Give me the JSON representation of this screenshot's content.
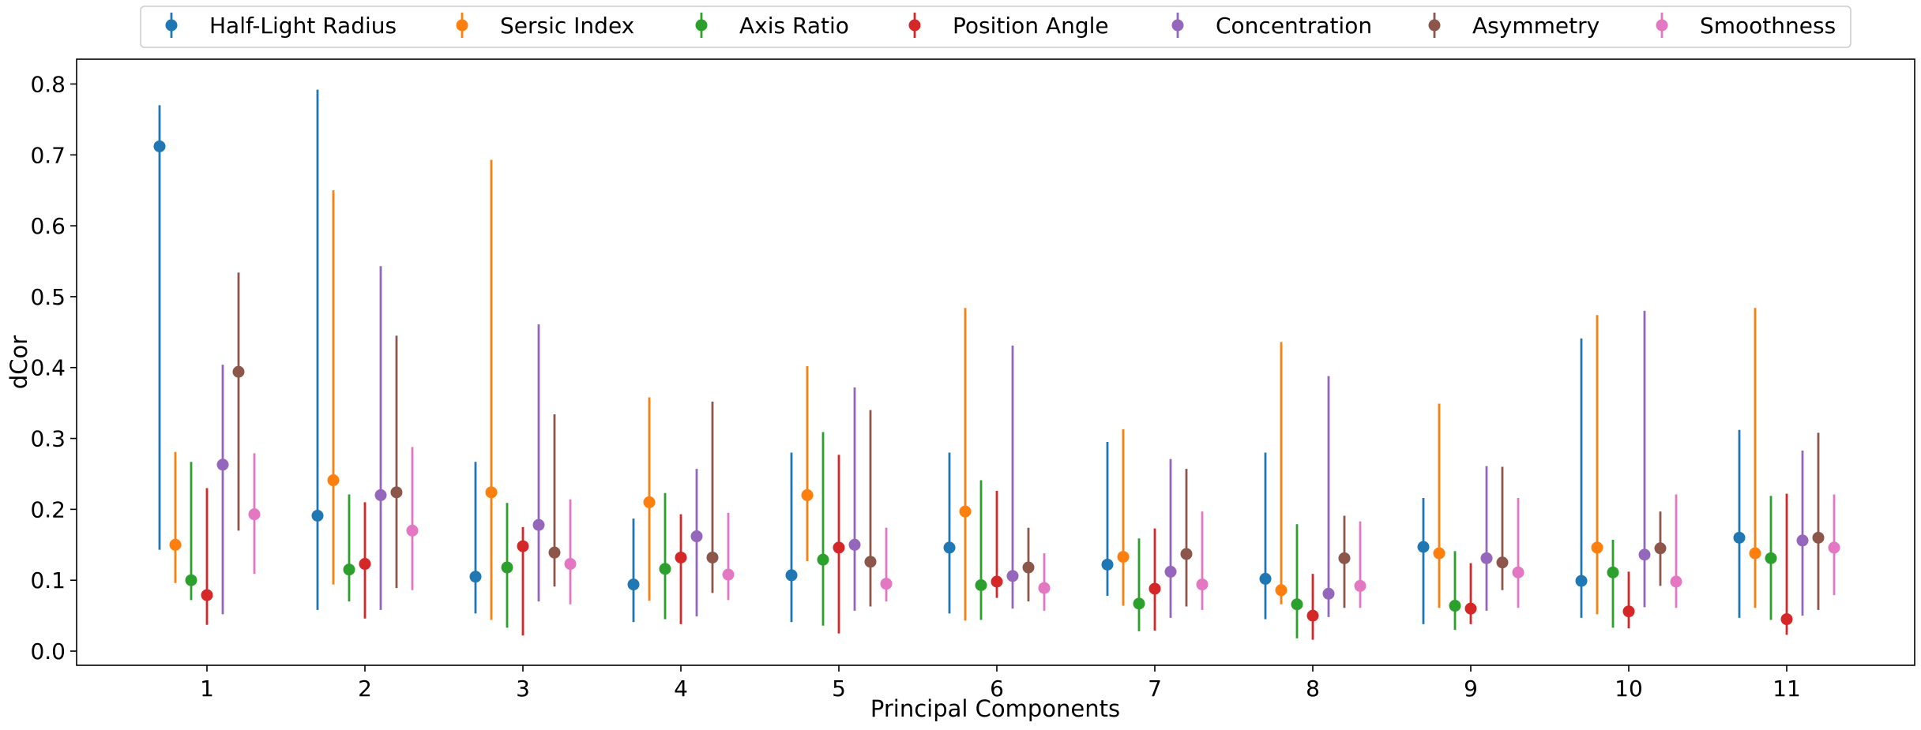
{
  "chart_data": {
    "type": "scatter",
    "variant": "point-with-errorbars",
    "xlabel": "Principal Components",
    "ylabel": "dCor",
    "categories": [
      "1",
      "2",
      "3",
      "4",
      "5",
      "6",
      "7",
      "8",
      "9",
      "10",
      "11"
    ],
    "ylim": [
      -0.02,
      0.835
    ],
    "yticks": [
      "0.0",
      "0.1",
      "0.2",
      "0.3",
      "0.4",
      "0.5",
      "0.6",
      "0.7",
      "0.8"
    ],
    "grid": false,
    "legend_position": "top-center",
    "series": [
      {
        "name": "Half-Light Radius",
        "color": "#1f77b4",
        "values": [
          0.712,
          0.191,
          0.105,
          0.094,
          0.107,
          0.146,
          0.122,
          0.102,
          0.147,
          0.099,
          0.16
        ],
        "lower": [
          0.143,
          0.058,
          0.053,
          0.041,
          0.041,
          0.053,
          0.078,
          0.045,
          0.038,
          0.047,
          0.047
        ],
        "upper": [
          0.77,
          0.792,
          0.267,
          0.187,
          0.28,
          0.28,
          0.295,
          0.28,
          0.216,
          0.441,
          0.312
        ]
      },
      {
        "name": "Sersic Index",
        "color": "#ff7f0e",
        "values": [
          0.15,
          0.241,
          0.224,
          0.21,
          0.22,
          0.197,
          0.133,
          0.086,
          0.138,
          0.146,
          0.138
        ],
        "lower": [
          0.096,
          0.094,
          0.044,
          0.071,
          0.127,
          0.043,
          0.064,
          0.066,
          0.061,
          0.052,
          0.061
        ],
        "upper": [
          0.281,
          0.65,
          0.693,
          0.358,
          0.402,
          0.484,
          0.313,
          0.436,
          0.349,
          0.474,
          0.484
        ]
      },
      {
        "name": "Axis Ratio",
        "color": "#2ca02c",
        "values": [
          0.1,
          0.115,
          0.118,
          0.116,
          0.129,
          0.093,
          0.067,
          0.066,
          0.064,
          0.111,
          0.131
        ],
        "lower": [
          0.072,
          0.07,
          0.033,
          0.045,
          0.036,
          0.044,
          0.028,
          0.018,
          0.03,
          0.033,
          0.044
        ],
        "upper": [
          0.267,
          0.221,
          0.209,
          0.223,
          0.309,
          0.241,
          0.159,
          0.179,
          0.141,
          0.157,
          0.219
        ]
      },
      {
        "name": "Position Angle",
        "color": "#d62728",
        "values": [
          0.079,
          0.123,
          0.148,
          0.132,
          0.146,
          0.098,
          0.088,
          0.05,
          0.06,
          0.056,
          0.045
        ],
        "lower": [
          0.037,
          0.046,
          0.022,
          0.038,
          0.025,
          0.075,
          0.029,
          0.016,
          0.038,
          0.032,
          0.023
        ],
        "upper": [
          0.23,
          0.21,
          0.175,
          0.193,
          0.277,
          0.226,
          0.173,
          0.109,
          0.124,
          0.112,
          0.222
        ]
      },
      {
        "name": "Concentration",
        "color": "#9467bd",
        "values": [
          0.263,
          0.22,
          0.178,
          0.162,
          0.15,
          0.106,
          0.112,
          0.081,
          0.131,
          0.136,
          0.156
        ],
        "lower": [
          0.052,
          0.058,
          0.07,
          0.049,
          0.057,
          0.06,
          0.047,
          0.048,
          0.057,
          0.062,
          0.05
        ],
        "upper": [
          0.404,
          0.543,
          0.461,
          0.257,
          0.372,
          0.431,
          0.271,
          0.388,
          0.261,
          0.48,
          0.283
        ]
      },
      {
        "name": "Asymmetry",
        "color": "#8c564b",
        "values": [
          0.394,
          0.224,
          0.139,
          0.132,
          0.126,
          0.118,
          0.137,
          0.131,
          0.125,
          0.145,
          0.16
        ],
        "lower": [
          0.17,
          0.089,
          0.091,
          0.082,
          0.063,
          0.07,
          0.063,
          0.061,
          0.086,
          0.092,
          0.058
        ],
        "upper": [
          0.534,
          0.445,
          0.334,
          0.352,
          0.34,
          0.174,
          0.257,
          0.191,
          0.26,
          0.197,
          0.308
        ]
      },
      {
        "name": "Smoothness",
        "color": "#e377c2",
        "values": [
          0.193,
          0.17,
          0.123,
          0.108,
          0.095,
          0.089,
          0.094,
          0.092,
          0.111,
          0.098,
          0.146
        ],
        "lower": [
          0.109,
          0.086,
          0.066,
          0.072,
          0.07,
          0.057,
          0.058,
          0.061,
          0.061,
          0.061,
          0.079
        ],
        "upper": [
          0.279,
          0.288,
          0.214,
          0.195,
          0.174,
          0.138,
          0.197,
          0.183,
          0.216,
          0.221,
          0.221
        ]
      }
    ]
  }
}
